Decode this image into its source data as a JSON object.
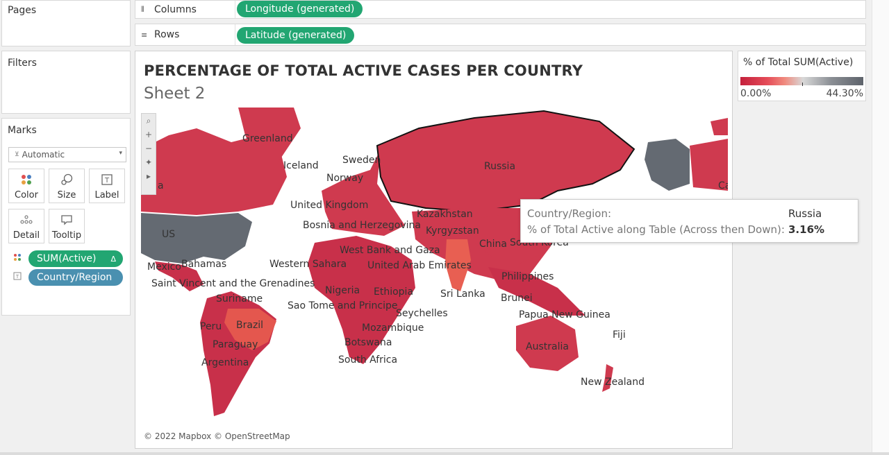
{
  "pages_label": "Pages",
  "filters_label": "Filters",
  "shelves": {
    "columns": {
      "label": "Columns",
      "icon": "columns-icon",
      "pill": "Longitude (generated)"
    },
    "rows": {
      "label": "Rows",
      "icon": "rows-icon",
      "pill": "Latitude (generated)"
    }
  },
  "marks": {
    "title": "Marks",
    "mark_type": "Automatic",
    "buttons": [
      {
        "label": "Color",
        "icon": "color-icon"
      },
      {
        "label": "Size",
        "icon": "size-icon"
      },
      {
        "label": "Label",
        "icon": "label-icon"
      },
      {
        "label": "Detail",
        "icon": "detail-icon"
      },
      {
        "label": "Tooltip",
        "icon": "tooltip-icon"
      }
    ],
    "fields": [
      {
        "label": "SUM(Active)",
        "suffix": "Δ",
        "color": "#22a672"
      },
      {
        "label": "Country/Region",
        "color": "#4a90b0"
      }
    ]
  },
  "viz": {
    "title": "PERCENTAGE OF TOTAL ACTIVE CASES PER COUNTRY",
    "subtitle": "Sheet 2",
    "copyright": "© 2022 Mapbox © OpenStreetMap",
    "labels": [
      "Greenland",
      "Iceland",
      "Sweden",
      "Norway",
      "Russia",
      "United Kingdom",
      "Kazakhstan",
      "Bosnia and Herzegovina",
      "Kyrgyzstan",
      "US",
      "China",
      "South Korea",
      "West Bank and Gaza",
      "Mexico",
      "Bahamas",
      "Western Sahara",
      "United Arab Emirates",
      "Saint Vincent and the Grenadines",
      "Philippines",
      "Nigeria",
      "Ethiopia",
      "Sri Lanka",
      "Suriname",
      "Brunei",
      "Sao Tome and Principe",
      "Seychelles",
      "Papua New Guinea",
      "Brazil",
      "Peru",
      "Mozambique",
      "Fiji",
      "Botswana",
      "Paraguay",
      "Australia",
      "South Africa",
      "Argentina",
      "New Zealand",
      "Ca",
      "a"
    ]
  },
  "tooltip": {
    "rows": [
      {
        "key": "Country/Region:",
        "value": "Russia"
      },
      {
        "key": "% of Total Active along Table (Across then Down):",
        "value": "3.16%"
      }
    ]
  },
  "legend": {
    "title": "% of Total SUM(Active)",
    "min": "0.00%",
    "max": "44.30%",
    "colors": {
      "low": "#c4203c",
      "mid": "#d8d8d8",
      "high": "#5e636b"
    }
  }
}
